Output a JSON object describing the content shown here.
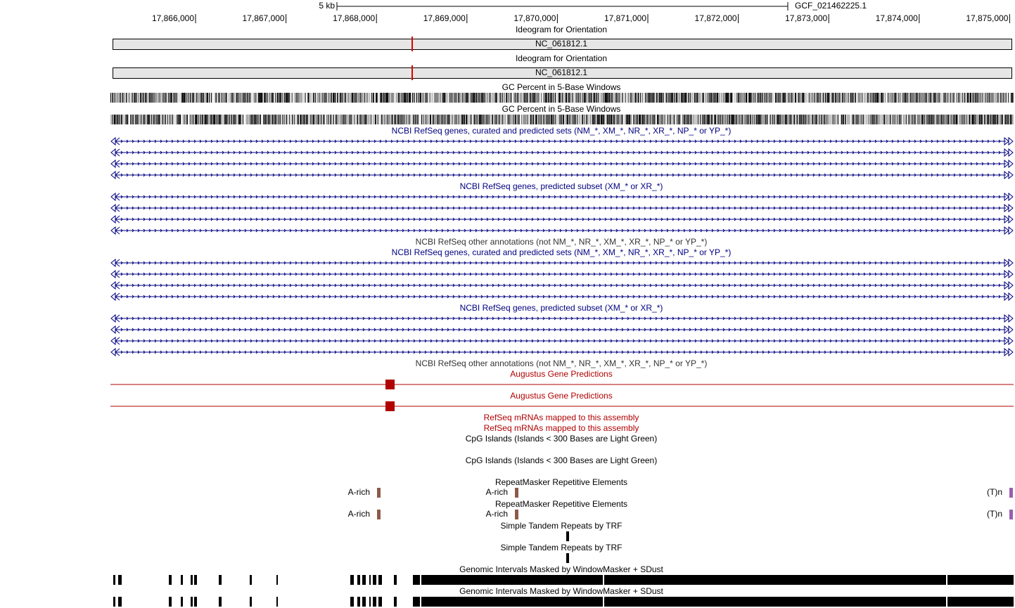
{
  "ruler": {
    "scale": "5 kb",
    "assembly": "GCF_021462225.1",
    "positions": [
      "17,866,000",
      "17,867,000",
      "17,868,000",
      "17,869,000",
      "17,870,000",
      "17,871,000",
      "17,872,000",
      "17,873,000",
      "17,874,000",
      "17,875,000"
    ]
  },
  "tracks": [
    {
      "title": "Ideogram for Orientation",
      "chrom": "NC_061812.1"
    },
    {
      "title": "Ideogram for Orientation",
      "chrom": "NC_061812.1"
    },
    {
      "title": "GC Percent in 5-Base Windows"
    },
    {
      "title": "GC Percent in 5-Base Windows"
    },
    {
      "title": "NCBI RefSeq genes, curated and predicted sets (NM_*, XM_*, NR_*, XR_*, NP_* or YP_*)"
    },
    {
      "title": "NCBI RefSeq genes, predicted subset (XM_* or XR_*)"
    },
    {
      "title": "NCBI RefSeq other annotations (not NM_*, NR_*, XM_*, XR_*, NP_* or YP_*)"
    },
    {
      "title": "NCBI RefSeq genes, curated and predicted sets (NM_*, XM_*, NR_*, XR_*, NP_* or YP_*)"
    },
    {
      "title": "NCBI RefSeq genes, predicted subset (XM_* or XR_*)"
    },
    {
      "title": "NCBI RefSeq other annotations (not NM_*, NR_*, XM_*, XR_*, NP_* or YP_*)"
    },
    {
      "title": "Augustus Gene Predictions"
    },
    {
      "title": "Augustus Gene Predictions"
    },
    {
      "title": "RefSeq mRNAs mapped to this assembly"
    },
    {
      "title": "RefSeq mRNAs mapped to this assembly"
    },
    {
      "title": "CpG Islands (Islands < 300 Bases are Light Green)"
    },
    {
      "title": "CpG Islands (Islands < 300 Bases are Light Green)"
    },
    {
      "title": "RepeatMasker Repetitive Elements",
      "items": [
        "A-rich",
        "A-rich",
        "(T)n"
      ]
    },
    {
      "title": "RepeatMasker Repetitive Elements",
      "items": [
        "A-rich",
        "A-rich",
        "(T)n"
      ]
    },
    {
      "title": "Simple Tandem Repeats by TRF"
    },
    {
      "title": "Simple Tandem Repeats by TRF"
    },
    {
      "title": "Genomic Intervals Masked by WindowMasker + SDust"
    },
    {
      "title": "Genomic Intervals Masked by WindowMasker + SDust"
    }
  ]
}
